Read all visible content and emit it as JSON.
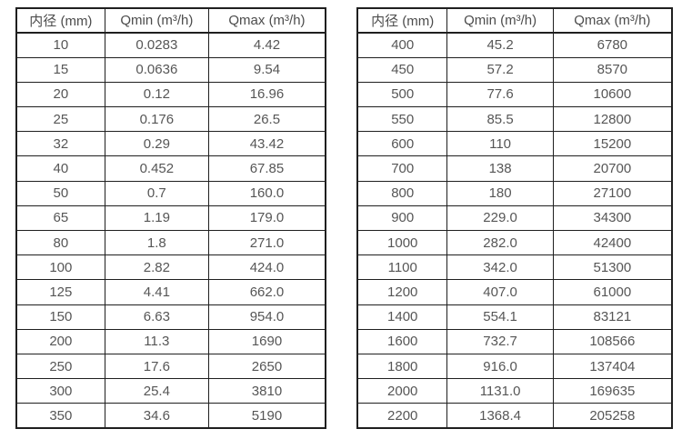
{
  "chart_data": [
    {
      "type": "table",
      "name": "flow-rate-table-small-diameters",
      "columns": [
        "内径 (mm)",
        "Qmin (m³/h)",
        "Qmax (m³/h)"
      ],
      "rows": [
        [
          "10",
          "0.0283",
          "4.42"
        ],
        [
          "15",
          "0.0636",
          "9.54"
        ],
        [
          "20",
          "0.12",
          "16.96"
        ],
        [
          "25",
          "0.176",
          "26.5"
        ],
        [
          "32",
          "0.29",
          "43.42"
        ],
        [
          "40",
          "0.452",
          "67.85"
        ],
        [
          "50",
          "0.7",
          "160.0"
        ],
        [
          "65",
          "1.19",
          "179.0"
        ],
        [
          "80",
          "1.8",
          "271.0"
        ],
        [
          "100",
          "2.82",
          "424.0"
        ],
        [
          "125",
          "4.41",
          "662.0"
        ],
        [
          "150",
          "6.63",
          "954.0"
        ],
        [
          "200",
          "11.3",
          "1690"
        ],
        [
          "250",
          "17.6",
          "2650"
        ],
        [
          "300",
          "25.4",
          "3810"
        ],
        [
          "350",
          "34.6",
          "5190"
        ]
      ]
    },
    {
      "type": "table",
      "name": "flow-rate-table-large-diameters",
      "columns": [
        "内径 (mm)",
        "Qmin (m³/h)",
        "Qmax (m³/h)"
      ],
      "rows": [
        [
          "400",
          "45.2",
          "6780"
        ],
        [
          "450",
          "57.2",
          "8570"
        ],
        [
          "500",
          "77.6",
          "10600"
        ],
        [
          "550",
          "85.5",
          "12800"
        ],
        [
          "600",
          "110",
          "15200"
        ],
        [
          "700",
          "138",
          "20700"
        ],
        [
          "800",
          "180",
          "27100"
        ],
        [
          "900",
          "229.0",
          "34300"
        ],
        [
          "1000",
          "282.0",
          "42400"
        ],
        [
          "1100",
          "342.0",
          "51300"
        ],
        [
          "1200",
          "407.0",
          "61000"
        ],
        [
          "1400",
          "554.1",
          "83121"
        ],
        [
          "1600",
          "732.7",
          "108566"
        ],
        [
          "1800",
          "916.0",
          "137404"
        ],
        [
          "2000",
          "1131.0",
          "169635"
        ],
        [
          "2200",
          "1368.4",
          "205258"
        ]
      ]
    }
  ],
  "styles": {
    "border_color": "#1f1f1f",
    "text_color": "#565656",
    "header_text_color": "#4c4c4c",
    "background": "#ffffff"
  }
}
